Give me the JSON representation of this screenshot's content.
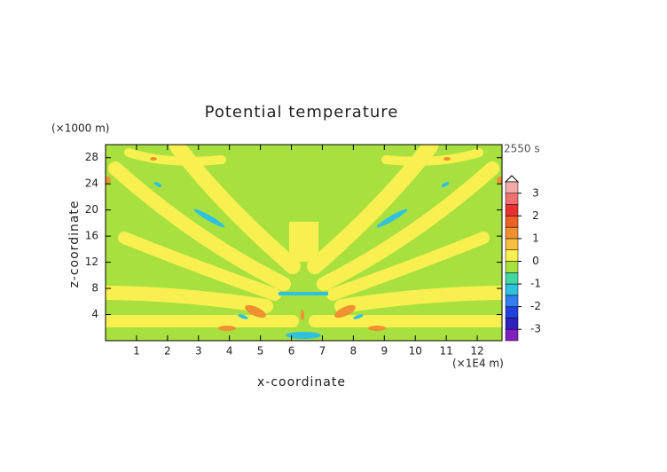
{
  "chart_data": {
    "type": "contour",
    "title": "Potential temperature",
    "x_label": "x-coordinate",
    "y_label": "z-coordinate",
    "x_unit": "(×1E4 m)",
    "y_unit": "(×1000 m)",
    "time_label": "2550 s",
    "xlim": [
      0,
      12.8
    ],
    "xticks": [
      1,
      2,
      3,
      4,
      5,
      6,
      7,
      8,
      9,
      10,
      11,
      12
    ],
    "ylim": [
      0,
      30
    ],
    "yticks": [
      4,
      8,
      12,
      16,
      20,
      24,
      28
    ],
    "colorbar": {
      "levels": [
        -3.5,
        -3,
        -2.5,
        -2,
        -1.5,
        -1,
        -0.5,
        0,
        0.5,
        1,
        1.5,
        2,
        2.5,
        3,
        3.5
      ],
      "colors": [
        "#8020c0",
        "#3020c0",
        "#2040e0",
        "#3080f0",
        "#30c0e0",
        "#40d8a0",
        "#a8e040",
        "#f8f050",
        "#f8c040",
        "#f09030",
        "#f06020",
        "#e83030",
        "#f07070",
        "#f4a8a8"
      ],
      "ticks": [
        -3,
        -2,
        -1,
        0,
        1,
        2,
        3
      ]
    }
  }
}
